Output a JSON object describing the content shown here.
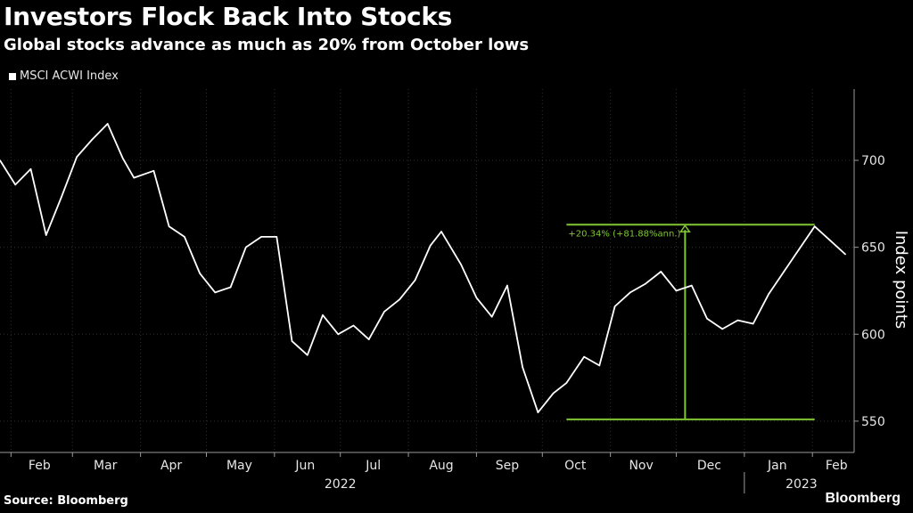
{
  "title": "Investors Flock Back Into Stocks",
  "subtitle": "Global stocks advance as much as 20% from October lows",
  "source": "Source: Bloomberg",
  "logo": "Bloomberg",
  "colors": {
    "background": "#000000",
    "line": "#ffffff",
    "annotation": "#7fc632",
    "grid": "#2e2e2e"
  },
  "chart_data": {
    "type": "line",
    "title": "Investors Flock Back Into Stocks",
    "subtitle": "Global stocks advance as much as 20% from October lows",
    "ylabel": "Index points",
    "xlabel": "",
    "ylim": [
      532,
      741
    ],
    "yticks": [
      550,
      600,
      650,
      700
    ],
    "x_tick_labels": [
      "Feb",
      "Mar",
      "Apr",
      "May",
      "Jun",
      "Jul",
      "Aug",
      "Sep",
      "Oct",
      "Nov",
      "Dec",
      "Jan",
      "Feb"
    ],
    "year_labels": [
      "2022",
      "2023"
    ],
    "grid": true,
    "legend": "top-left",
    "series": [
      {
        "name": "MSCI ACWI Index",
        "dates": [
          "2022-01-27",
          "2022-02-03",
          "2022-02-10",
          "2022-02-17",
          "2022-02-24",
          "2022-03-03",
          "2022-03-10",
          "2022-03-17",
          "2022-03-24",
          "2022-03-29",
          "2022-04-07",
          "2022-04-14",
          "2022-04-21",
          "2022-04-28",
          "2022-05-05",
          "2022-05-12",
          "2022-05-19",
          "2022-05-26",
          "2022-06-02",
          "2022-06-09",
          "2022-06-16",
          "2022-06-23",
          "2022-06-30",
          "2022-07-07",
          "2022-07-14",
          "2022-07-21",
          "2022-07-28",
          "2022-08-04",
          "2022-08-11",
          "2022-08-16",
          "2022-08-25",
          "2022-09-01",
          "2022-09-08",
          "2022-09-15",
          "2022-09-22",
          "2022-09-29",
          "2022-10-06",
          "2022-10-12",
          "2022-10-20",
          "2022-10-27",
          "2022-11-03",
          "2022-11-10",
          "2022-11-17",
          "2022-11-24",
          "2022-12-01",
          "2022-12-08",
          "2022-12-15",
          "2022-12-22",
          "2022-12-29",
          "2023-01-05",
          "2023-01-12",
          "2023-01-19",
          "2023-01-26",
          "2023-02-02",
          "2023-02-09",
          "2023-02-16"
        ],
        "values": [
          700,
          686,
          695,
          657,
          679,
          702,
          712,
          721,
          701,
          690,
          694,
          662,
          656,
          635,
          624,
          627,
          650,
          656,
          656,
          596,
          588,
          611,
          600,
          605,
          597,
          613,
          620,
          631,
          651,
          659,
          640,
          621,
          610,
          628,
          581,
          555,
          566,
          572,
          587,
          582,
          616,
          624,
          629,
          636,
          625,
          628,
          609,
          603,
          608,
          606,
          623,
          636,
          649,
          662,
          654,
          646
        ]
      }
    ],
    "annotations": [
      {
        "text": "+20.34% (+81.88%ann.)",
        "start": {
          "date": "2022-10-12",
          "value": 551
        },
        "end": {
          "date": "2023-02-02",
          "value": 663
        }
      }
    ]
  }
}
